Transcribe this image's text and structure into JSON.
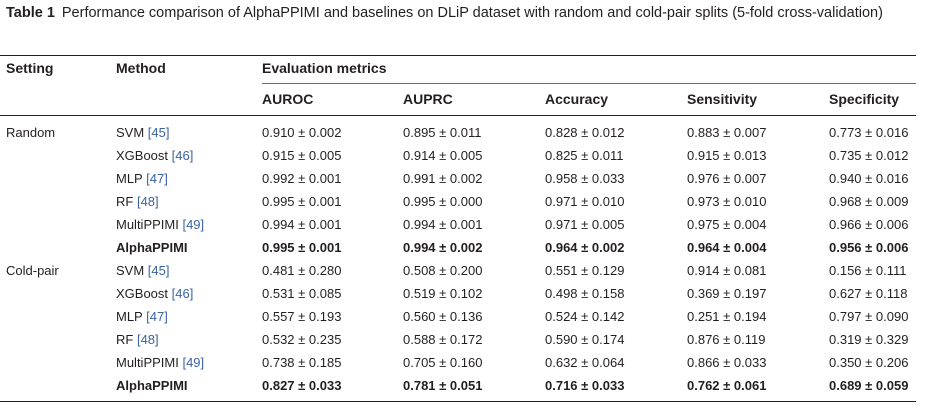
{
  "caption": {
    "label": "Table 1",
    "text": "Performance comparison of AlphaPPIMI and baselines on DLiP dataset with random and cold-pair splits (5-fold cross-validation)"
  },
  "headers": {
    "setting": "Setting",
    "method": "Method",
    "evaluation": "Evaluation metrics",
    "metrics": [
      "AUROC",
      "AUPRC",
      "Accuracy",
      "Sensitivity",
      "Specificity"
    ]
  },
  "groups": [
    {
      "setting": "Random",
      "rows": [
        {
          "method": "SVM",
          "ref": "[45]",
          "values": [
            "0.910 ± 0.002",
            "0.895 ± 0.011",
            "0.828 ± 0.012",
            "0.883 ± 0.007",
            "0.773 ± 0.016"
          ]
        },
        {
          "method": "XGBoost",
          "ref": "[46]",
          "values": [
            "0.915 ± 0.005",
            "0.914 ± 0.005",
            "0.825 ± 0.011",
            "0.915 ± 0.013",
            "0.735 ± 0.012"
          ]
        },
        {
          "method": "MLP",
          "ref": "[47]",
          "values": [
            "0.992 ± 0.001",
            "0.991 ± 0.002",
            "0.958 ± 0.033",
            "0.976 ± 0.007",
            "0.940 ± 0.016"
          ]
        },
        {
          "method": "RF",
          "ref": "[48]",
          "values": [
            "0.995 ± 0.001",
            "0.995 ± 0.000",
            "0.971 ± 0.010",
            "0.973 ± 0.010",
            "0.968 ± 0.009"
          ]
        },
        {
          "method": "MultiPPIMI",
          "ref": "[49]",
          "values": [
            "0.994 ± 0.001",
            "0.994 ± 0.001",
            "0.971 ± 0.005",
            "0.975 ± 0.004",
            "0.966 ± 0.006"
          ]
        },
        {
          "method": "AlphaPPIMI",
          "ref": "",
          "bold": true,
          "values": [
            "0.995 ± 0.001",
            "0.994 ± 0.002",
            "0.964 ± 0.002",
            "0.964 ± 0.004",
            "0.956 ± 0.006"
          ]
        }
      ]
    },
    {
      "setting": "Cold-pair",
      "rows": [
        {
          "method": "SVM",
          "ref": "[45]",
          "values": [
            "0.481 ± 0.280",
            "0.508 ± 0.200",
            "0.551 ± 0.129",
            "0.914 ± 0.081",
            "0.156 ± 0.111"
          ]
        },
        {
          "method": "XGBoost",
          "ref": "[46]",
          "values": [
            "0.531 ± 0.085",
            "0.519 ± 0.102",
            "0.498 ± 0.158",
            "0.369 ± 0.197",
            "0.627 ± 0.118"
          ]
        },
        {
          "method": "MLP",
          "ref": "[47]",
          "values": [
            "0.557 ± 0.193",
            "0.560 ± 0.136",
            "0.524 ± 0.142",
            "0.251 ± 0.194",
            "0.797 ± 0.090"
          ]
        },
        {
          "method": "RF",
          "ref": "[48]",
          "values": [
            "0.532 ± 0.235",
            "0.588 ± 0.172",
            "0.590 ± 0.174",
            "0.876 ± 0.119",
            "0.319 ± 0.329"
          ]
        },
        {
          "method": "MultiPPIMI",
          "ref": "[49]",
          "values": [
            "0.738 ± 0.185",
            "0.705 ± 0.160",
            "0.632 ± 0.064",
            "0.866 ± 0.033",
            "0.350 ± 0.206"
          ]
        },
        {
          "method": "AlphaPPIMI",
          "ref": "",
          "bold": true,
          "values": [
            "0.827 ± 0.033",
            "0.781 ± 0.051",
            "0.716 ± 0.033",
            "0.762 ± 0.061",
            "0.689 ± 0.059"
          ]
        }
      ]
    }
  ],
  "colors": {
    "text": "#231f20",
    "ref_link": "#3b63a8"
  }
}
